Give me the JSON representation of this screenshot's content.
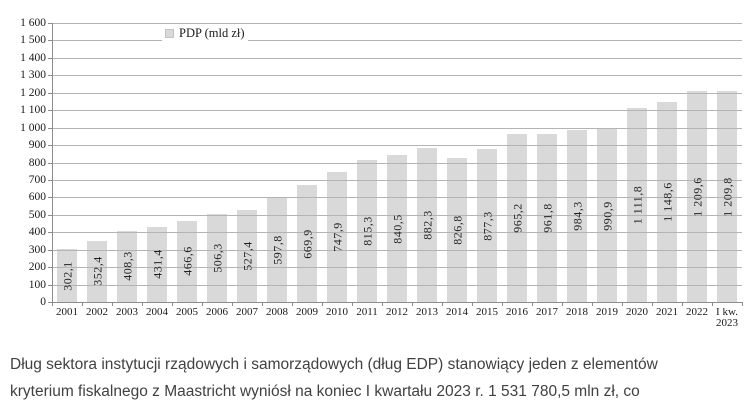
{
  "chart_data": {
    "type": "bar",
    "title": "",
    "legend": "PDP (mld zł)",
    "ylabel": "",
    "xlabel": "",
    "ylim": [
      0,
      1600
    ],
    "ytick_step": 100,
    "grid": true,
    "legend_position": "top-center",
    "ytick_labels": [
      "0",
      "100",
      "200",
      "300",
      "400",
      "500",
      "600",
      "700",
      "800",
      "900",
      "1 000",
      "1 100",
      "1 200",
      "1 300",
      "1 400",
      "1 500",
      "1 600"
    ],
    "categories": [
      "2001",
      "2002",
      "2003",
      "2004",
      "2005",
      "2006",
      "2007",
      "2008",
      "2009",
      "2010",
      "2011",
      "2012",
      "2013",
      "2014",
      "2015",
      "2016",
      "2017",
      "2018",
      "2019",
      "2020",
      "2021",
      "2022",
      "I kw.\n2023"
    ],
    "values": [
      302.1,
      352.4,
      408.3,
      431.4,
      466.6,
      506.3,
      527.4,
      597.8,
      669.9,
      747.9,
      815.3,
      840.5,
      882.3,
      826.8,
      877.3,
      965.2,
      961.8,
      984.3,
      990.9,
      1111.8,
      1148.6,
      1209.6,
      1209.8
    ],
    "value_labels": [
      "302,1",
      "352,4",
      "408,3",
      "431,4",
      "466,6",
      "506,3",
      "527,4",
      "597,8",
      "669,9",
      "747,9",
      "815,3",
      "840,5",
      "882,3",
      "826,8",
      "877,3",
      "965,2",
      "961,8",
      "984,3",
      "990,9",
      "1 111,8",
      "1 148,6",
      "1 209,6",
      "1 209,8"
    ]
  },
  "colors": {
    "bar": "#d9d9d9",
    "gridline": "#b4b4b4",
    "axis": "#8c8c8c",
    "chart_text": "#1a1a1a",
    "caption_text": "#414141"
  },
  "paragraph": {
    "lines": [
      "Dług sektora instytucji rządowych i samorządowych (dług EDP) stanowiący jeden z elementów",
      "kryterium fiskalnego z Maastricht wyniósł na koniec I kwartału 2023 r. 1 531 780,5 mln zł, co"
    ]
  }
}
